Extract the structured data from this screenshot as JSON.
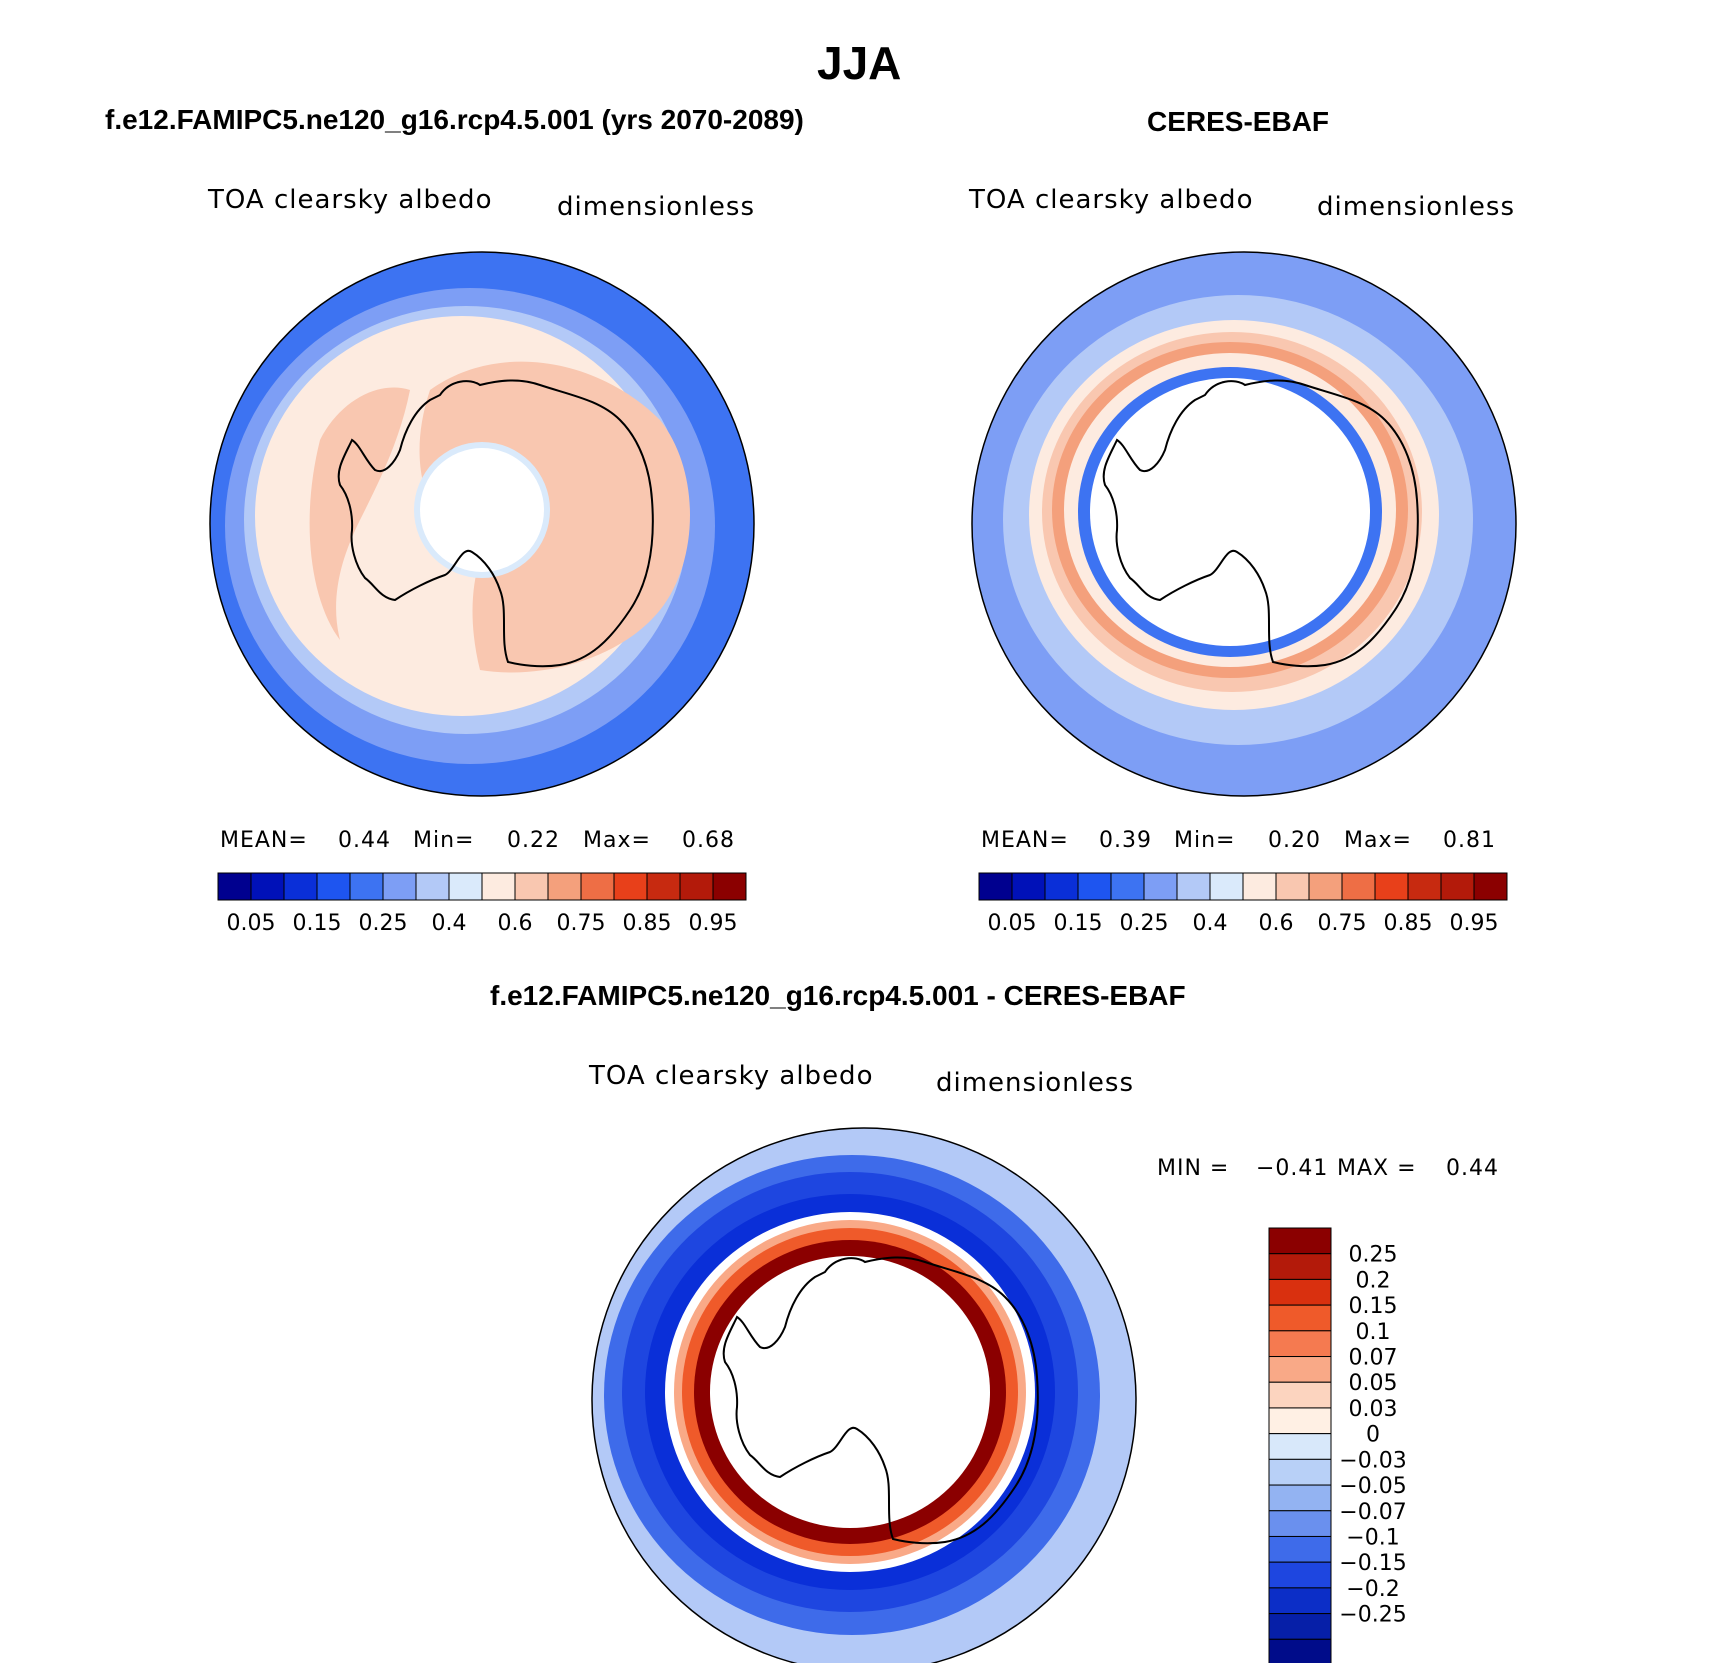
{
  "page": {
    "title": "JJA"
  },
  "panels": [
    {
      "header": "f.e12.FAMIPC5.ne120_g16.rcp4.5.001 (yrs 2070-2089)",
      "variable": "TOA clearsky albedo",
      "units": "dimensionless",
      "stats": {
        "mean_label": "MEAN=",
        "mean": "0.44",
        "min_label": "Min=",
        "min": "0.22",
        "max_label": "Max=",
        "max": "0.68"
      }
    },
    {
      "header": "CERES-EBAF",
      "variable": "TOA clearsky albedo",
      "units": "dimensionless",
      "stats": {
        "mean_label": "MEAN=",
        "mean": "0.39",
        "min_label": "Min=",
        "min": "0.20",
        "max_label": "Max=",
        "max": "0.81"
      }
    },
    {
      "header": "f.e12.FAMIPC5.ne120_g16.rcp4.5.001 - CERES-EBAF",
      "variable": "TOA clearsky albedo",
      "units": "dimensionless",
      "stats": {
        "min_label": "MIN =",
        "min": "−0.41",
        "max_label": "MAX =",
        "max": "0.44"
      }
    }
  ],
  "legends": {
    "field_colors": [
      "#00008f",
      "#0011b8",
      "#0a2fd8",
      "#1e55f0",
      "#3d73f2",
      "#7d9ef5",
      "#b3c9f7",
      "#daeafb",
      "#fdebe0",
      "#f9c7b0",
      "#f4a07c",
      "#ee6e45",
      "#e8401a",
      "#c72a10",
      "#b31a0a",
      "#8b0000"
    ],
    "field_ticks": [
      "0.05",
      "0.15",
      "0.25",
      "0.4",
      "0.6",
      "0.75",
      "0.85",
      "0.95"
    ],
    "diff_colors": [
      "#8b0000",
      "#b31a0a",
      "#d9300f",
      "#ef5a2a",
      "#f57a50",
      "#f9a987",
      "#fcd4bf",
      "#fff0e4",
      "#d8e8fa",
      "#b8d0f7",
      "#93b3f2",
      "#6a90ee",
      "#3e6bea",
      "#1e46e0",
      "#0c2ec7",
      "#061fa8",
      "#000c8a"
    ],
    "diff_ticks": [
      "0.25",
      "0.2",
      "0.15",
      "0.1",
      "0.07",
      "0.05",
      "0.03",
      "0",
      "−0.03",
      "−0.05",
      "−0.07",
      "−0.1",
      "−0.15",
      "−0.2",
      "−0.25"
    ]
  },
  "map_colors": {
    "model": {
      "outer": "#3d73f2",
      "mid": "#7d9ef5",
      "near": "#b3c9f7",
      "shelf": "#fdebe0",
      "land": "#f9c7b0",
      "cap": "#daeafb"
    },
    "obs": {
      "outer": "#7d9ef5",
      "outer2": "#b3c9f7",
      "near": "#fdebe0",
      "ring": "#f9c7b0",
      "ring2": "#f4a07c",
      "inner": "#3d73f2"
    },
    "diff": {
      "outer": "#b3c9f7",
      "band": "#1e46e0",
      "band2": "#0a2fd8",
      "band3": "#3e6bea",
      "ring": "#8b0000",
      "ring2": "#ef5a2a",
      "ring3": "#f9a987"
    }
  }
}
